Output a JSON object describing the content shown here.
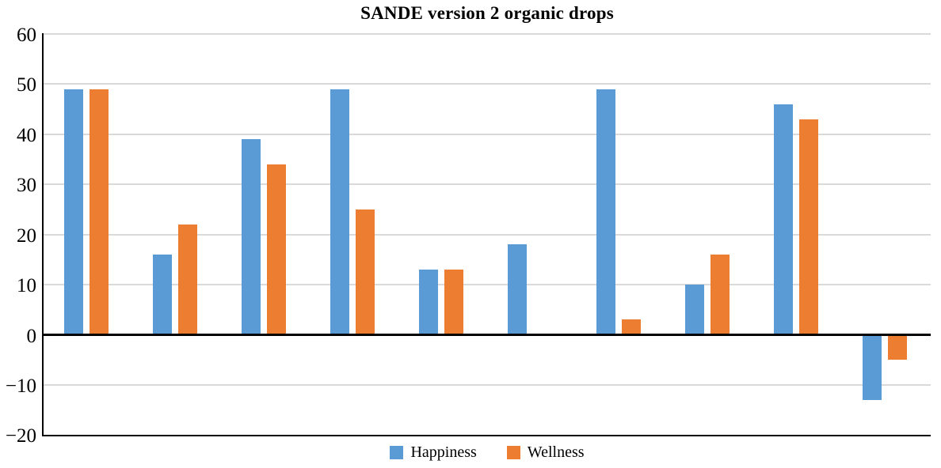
{
  "chart_data": {
    "type": "bar",
    "title": "SANDE version 2 organic drops",
    "categories": [
      "",
      "",
      "",
      "",
      "",
      "",
      "",
      "",
      "",
      ""
    ],
    "series": [
      {
        "name": "Happiness",
        "color": "#5B9BD5",
        "values": [
          49,
          16,
          39,
          49,
          13,
          18,
          49,
          10,
          46,
          -13
        ]
      },
      {
        "name": "Wellness",
        "color": "#ED7D31",
        "values": [
          49,
          22,
          34,
          25,
          13,
          0,
          3,
          16,
          43,
          -5
        ]
      }
    ],
    "ylim": [
      -20,
      60
    ],
    "yticks": [
      {
        "v": 60,
        "label": "60"
      },
      {
        "v": 50,
        "label": "50"
      },
      {
        "v": 40,
        "label": "40"
      },
      {
        "v": 30,
        "label": "30"
      },
      {
        "v": 20,
        "label": "20"
      },
      {
        "v": 10,
        "label": "10"
      },
      {
        "v": 0,
        "label": "0"
      },
      {
        "v": -10,
        "label": "−10"
      },
      {
        "v": -20,
        "label": "−20"
      }
    ],
    "grid": true,
    "legend_position": "bottom",
    "xlabel": "",
    "ylabel": "",
    "colors": {
      "gridline": "#D9D9D9",
      "axis": "#000000",
      "background": "#FFFFFF"
    }
  }
}
